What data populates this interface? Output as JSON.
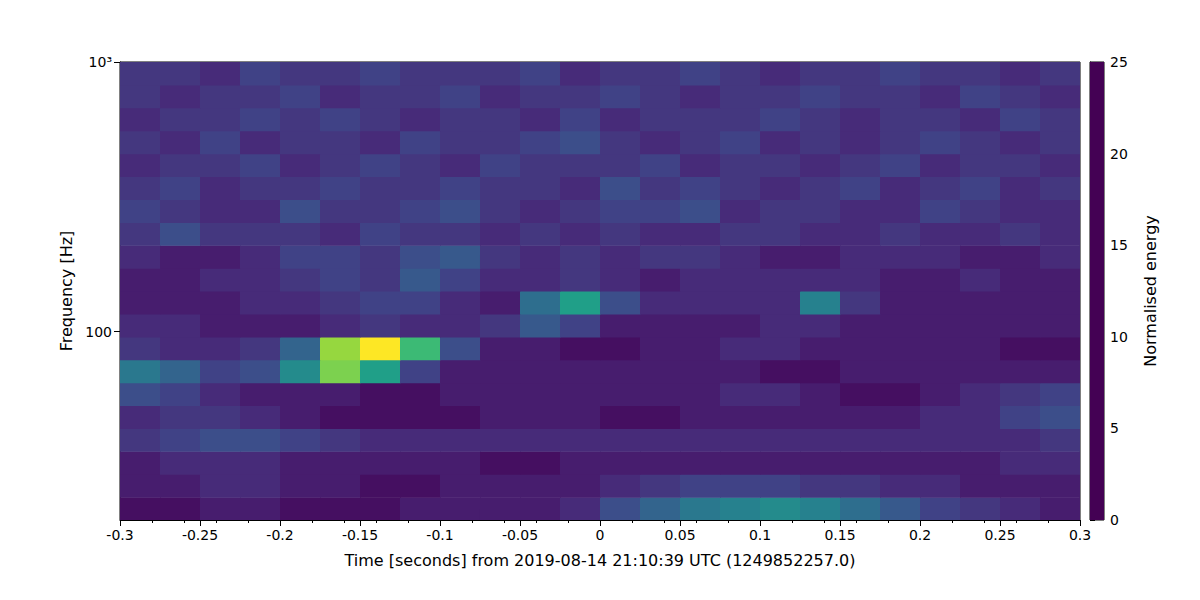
{
  "chart_data": {
    "type": "heatmap",
    "x_label": "Time [seconds] from 2019-08-14 21:10:39 UTC (1249852257.0)",
    "y_label": "Frequency [Hz]",
    "log": "y",
    "xlim": [
      -0.3,
      0.3
    ],
    "xticks": [
      -0.3,
      -0.25,
      -0.2,
      -0.15,
      -0.1,
      -0.05,
      0,
      0.05,
      0.1,
      0.15,
      0.2,
      0.25,
      0.3
    ],
    "ylim": [
      20,
      1000
    ],
    "yticks": [
      100,
      {
        "value": 1000,
        "label": "10³"
      }
    ],
    "x_edges": [
      -0.3,
      -0.275,
      -0.25,
      -0.225,
      -0.2,
      -0.175,
      -0.15,
      -0.125,
      -0.1,
      -0.075,
      -0.05,
      -0.025,
      0,
      0.025,
      0.05,
      0.075,
      0.1,
      0.125,
      0.15,
      0.175,
      0.2,
      0.225,
      0.25,
      0.275,
      0.3
    ],
    "y_edges": [
      20,
      24.3,
      29.6,
      36.0,
      43.7,
      53.2,
      64.7,
      78.6,
      95.6,
      116.3,
      141.4,
      172.0,
      209.1,
      254.3,
      309.3,
      376.1,
      457.4,
      556.2,
      676.4,
      822.5,
      1000
    ],
    "values": [
      [
        1,
        1,
        2,
        2,
        1,
        1,
        1,
        2,
        2,
        2,
        2,
        3,
        6,
        8,
        10,
        11,
        12,
        11,
        9,
        7,
        5,
        4,
        3,
        2
      ],
      [
        2,
        2,
        3,
        3,
        2,
        2,
        1,
        1,
        2,
        2,
        2,
        2,
        3,
        4,
        5,
        5,
        5,
        4,
        4,
        3,
        3,
        2,
        2,
        2
      ],
      [
        2,
        3,
        3,
        3,
        2,
        2,
        2,
        2,
        2,
        1,
        1,
        2,
        2,
        2,
        2,
        2,
        2,
        2,
        2,
        2,
        2,
        2,
        3,
        3
      ],
      [
        4,
        5,
        6,
        6,
        5,
        4,
        3,
        3,
        3,
        3,
        3,
        3,
        3,
        3,
        3,
        3,
        3,
        3,
        3,
        3,
        3,
        3,
        3,
        4
      ],
      [
        3,
        4,
        4,
        3,
        2,
        1,
        1,
        1,
        1,
        2,
        2,
        2,
        1,
        1,
        2,
        2,
        2,
        2,
        2,
        2,
        3,
        3,
        5,
        6
      ],
      [
        6,
        5,
        3,
        2,
        2,
        2,
        1,
        1,
        2,
        2,
        2,
        2,
        2,
        2,
        2,
        3,
        3,
        2,
        1,
        1,
        2,
        3,
        4,
        5
      ],
      [
        10,
        8,
        5,
        6,
        12,
        20,
        14,
        5,
        2,
        2,
        2,
        2,
        2,
        2,
        2,
        2,
        1,
        1,
        2,
        2,
        2,
        2,
        2,
        2
      ],
      [
        4,
        3,
        3,
        4,
        8,
        21,
        25,
        17,
        6,
        2,
        2,
        1,
        1,
        2,
        2,
        3,
        3,
        2,
        2,
        2,
        2,
        2,
        1,
        1
      ],
      [
        3,
        3,
        2,
        2,
        2,
        3,
        4,
        3,
        3,
        4,
        7,
        5,
        2,
        2,
        2,
        2,
        3,
        3,
        2,
        2,
        2,
        2,
        2,
        2
      ],
      [
        2,
        2,
        2,
        3,
        3,
        4,
        5,
        5,
        3,
        2,
        9,
        14,
        6,
        3,
        3,
        3,
        3,
        11,
        4,
        2,
        2,
        2,
        2,
        2
      ],
      [
        2,
        2,
        3,
        3,
        4,
        5,
        4,
        7,
        5,
        3,
        3,
        4,
        3,
        2,
        3,
        3,
        3,
        3,
        3,
        2,
        2,
        3,
        2,
        2
      ],
      [
        3,
        2,
        2,
        3,
        5,
        5,
        4,
        6,
        7,
        4,
        3,
        4,
        3,
        4,
        4,
        3,
        2,
        2,
        3,
        3,
        3,
        2,
        2,
        3
      ],
      [
        4,
        6,
        4,
        4,
        4,
        3,
        5,
        4,
        4,
        3,
        4,
        3,
        4,
        3,
        3,
        4,
        4,
        3,
        3,
        4,
        3,
        3,
        4,
        3
      ],
      [
        5,
        4,
        3,
        3,
        6,
        4,
        4,
        5,
        6,
        4,
        3,
        4,
        5,
        5,
        6,
        3,
        4,
        4,
        3,
        3,
        5,
        4,
        3,
        3
      ],
      [
        4,
        5,
        3,
        4,
        4,
        5,
        4,
        4,
        5,
        4,
        4,
        3,
        6,
        4,
        5,
        4,
        3,
        4,
        5,
        3,
        4,
        5,
        3,
        4
      ],
      [
        3,
        4,
        4,
        5,
        3,
        4,
        5,
        4,
        3,
        5,
        4,
        4,
        4,
        5,
        3,
        4,
        4,
        3,
        4,
        5,
        3,
        4,
        4,
        3
      ],
      [
        4,
        3,
        5,
        3,
        4,
        4,
        3,
        5,
        4,
        4,
        5,
        6,
        4,
        3,
        4,
        5,
        3,
        4,
        3,
        4,
        5,
        4,
        3,
        4
      ],
      [
        3,
        4,
        4,
        5,
        4,
        5,
        4,
        3,
        4,
        4,
        3,
        5,
        3,
        4,
        4,
        4,
        5,
        4,
        3,
        4,
        4,
        3,
        5,
        4
      ],
      [
        4,
        3,
        4,
        4,
        5,
        3,
        4,
        4,
        5,
        3,
        4,
        4,
        5,
        4,
        3,
        4,
        4,
        5,
        4,
        4,
        3,
        5,
        4,
        3
      ],
      [
        4,
        4,
        3,
        5,
        4,
        4,
        5,
        4,
        4,
        4,
        5,
        3,
        4,
        4,
        5,
        4,
        3,
        4,
        4,
        5,
        4,
        4,
        3,
        4
      ]
    ],
    "colorbar": {
      "label": "Normalised energy",
      "range": [
        0,
        25
      ],
      "ticks": [
        0,
        5,
        10,
        15,
        20,
        25
      ]
    }
  }
}
